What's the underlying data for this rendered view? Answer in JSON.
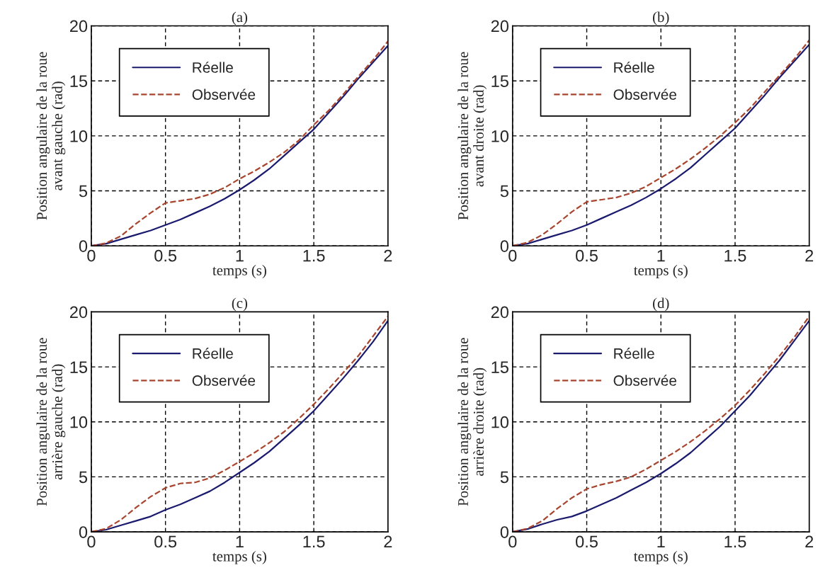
{
  "chart_data": [
    {
      "type": "line",
      "title": "(a)",
      "xlabel": "temps (s)",
      "ylabel": "Position angulaire de la roue\navant gauche (rad)",
      "x": [
        0,
        0.1,
        0.2,
        0.3,
        0.4,
        0.5,
        0.6,
        0.7,
        0.8,
        0.9,
        1.0,
        1.1,
        1.2,
        1.3,
        1.4,
        1.5,
        1.6,
        1.7,
        1.8,
        1.9,
        2.0
      ],
      "xlim": [
        0,
        2
      ],
      "ylim": [
        0,
        20
      ],
      "xticks": [
        0,
        0.5,
        1,
        1.5,
        2
      ],
      "yticks": [
        0,
        5,
        10,
        15,
        20
      ],
      "grid": true,
      "legend": "top left",
      "series": [
        {
          "name": "Réelle",
          "color": "#1a1a6e",
          "line_style": "solid",
          "values": [
            0,
            0.2,
            0.6,
            1.0,
            1.4,
            1.9,
            2.4,
            3.0,
            3.6,
            4.3,
            5.1,
            6.0,
            7.0,
            8.2,
            9.4,
            10.6,
            12.1,
            13.6,
            15.2,
            16.7,
            18.2
          ]
        },
        {
          "name": "Observée",
          "color": "#a8452e",
          "line_style": "dashed",
          "values": [
            0,
            0.25,
            0.9,
            2.0,
            3.0,
            3.9,
            4.1,
            4.3,
            4.7,
            5.3,
            6.1,
            6.8,
            7.6,
            8.5,
            9.6,
            11.0,
            12.3,
            13.8,
            15.4,
            16.9,
            18.6
          ]
        }
      ]
    },
    {
      "type": "line",
      "title": "(b)",
      "xlabel": "temps (s)",
      "ylabel": "Position angulaire de la roue\navant droite (rad)",
      "x": [
        0,
        0.1,
        0.2,
        0.3,
        0.4,
        0.5,
        0.6,
        0.7,
        0.8,
        0.9,
        1.0,
        1.1,
        1.2,
        1.3,
        1.4,
        1.5,
        1.6,
        1.7,
        1.8,
        1.9,
        2.0
      ],
      "xlim": [
        0,
        2
      ],
      "ylim": [
        0,
        20
      ],
      "xticks": [
        0,
        0.5,
        1,
        1.5,
        2
      ],
      "yticks": [
        0,
        5,
        10,
        15,
        20
      ],
      "grid": true,
      "legend": "top left",
      "series": [
        {
          "name": "Réelle",
          "color": "#1a1a6e",
          "line_style": "solid",
          "values": [
            0,
            0.2,
            0.6,
            1.0,
            1.4,
            1.9,
            2.5,
            3.1,
            3.7,
            4.4,
            5.2,
            6.1,
            7.1,
            8.3,
            9.5,
            10.7,
            12.2,
            13.7,
            15.3,
            16.8,
            18.3
          ]
        },
        {
          "name": "Observée",
          "color": "#a8452e",
          "line_style": "dashed",
          "values": [
            0,
            0.3,
            1.0,
            2.0,
            3.1,
            4.0,
            4.2,
            4.4,
            4.8,
            5.4,
            6.2,
            7.0,
            7.9,
            8.9,
            10.0,
            11.2,
            12.5,
            14.0,
            15.5,
            17.0,
            18.7
          ]
        }
      ]
    },
    {
      "type": "line",
      "title": "(c)",
      "xlabel": "temps (s)",
      "ylabel": "Position angulaire de la roue\narrière gauche (rad)",
      "x": [
        0,
        0.1,
        0.2,
        0.3,
        0.4,
        0.5,
        0.6,
        0.7,
        0.8,
        0.9,
        1.0,
        1.1,
        1.2,
        1.3,
        1.4,
        1.5,
        1.6,
        1.7,
        1.8,
        1.9,
        2.0
      ],
      "xlim": [
        0,
        2
      ],
      "ylim": [
        0,
        20
      ],
      "xticks": [
        0,
        0.5,
        1,
        1.5,
        2
      ],
      "yticks": [
        0,
        5,
        10,
        15,
        20
      ],
      "grid": true,
      "legend": "top left",
      "series": [
        {
          "name": "Réelle",
          "color": "#1a1a6e",
          "line_style": "solid",
          "values": [
            0,
            0.2,
            0.6,
            1.0,
            1.4,
            2.0,
            2.5,
            3.1,
            3.7,
            4.5,
            5.4,
            6.3,
            7.3,
            8.5,
            9.7,
            11.0,
            12.5,
            14.0,
            15.6,
            17.3,
            19.2
          ]
        },
        {
          "name": "Observée",
          "color": "#a8452e",
          "line_style": "dashed",
          "values": [
            0,
            0.3,
            1.1,
            2.2,
            3.2,
            4.0,
            4.4,
            4.5,
            4.9,
            5.6,
            6.4,
            7.2,
            8.1,
            9.1,
            10.3,
            11.6,
            13.0,
            14.5,
            16.0,
            17.8,
            19.6
          ]
        }
      ]
    },
    {
      "type": "line",
      "title": "(d)",
      "xlabel": "temps (s)",
      "ylabel": "Position angulaire de la roue\narrière droite (rad)",
      "x": [
        0,
        0.1,
        0.2,
        0.3,
        0.4,
        0.5,
        0.6,
        0.7,
        0.8,
        0.9,
        1.0,
        1.1,
        1.2,
        1.3,
        1.4,
        1.5,
        1.6,
        1.7,
        1.8,
        1.9,
        2.0
      ],
      "xlim": [
        0,
        2
      ],
      "ylim": [
        0,
        20
      ],
      "xticks": [
        0,
        0.5,
        1,
        1.5,
        2
      ],
      "yticks": [
        0,
        5,
        10,
        15,
        20
      ],
      "grid": true,
      "legend": "top left",
      "series": [
        {
          "name": "Réelle",
          "color": "#1a1a6e",
          "line_style": "solid",
          "values": [
            0,
            0.25,
            0.7,
            1.1,
            1.4,
            1.9,
            2.5,
            3.1,
            3.8,
            4.5,
            5.3,
            6.2,
            7.2,
            8.4,
            9.6,
            11.0,
            12.4,
            14.0,
            15.6,
            17.4,
            19.2
          ]
        },
        {
          "name": "Observée",
          "color": "#a8452e",
          "line_style": "dashed",
          "values": [
            0,
            0.3,
            1.0,
            2.1,
            3.1,
            3.9,
            4.3,
            4.6,
            5.0,
            5.7,
            6.5,
            7.3,
            8.2,
            9.2,
            10.3,
            11.5,
            12.9,
            14.4,
            16.0,
            17.7,
            19.6
          ]
        }
      ]
    }
  ]
}
